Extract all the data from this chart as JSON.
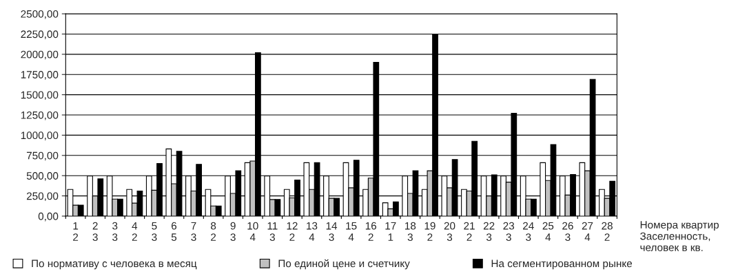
{
  "chart_data": {
    "type": "bar",
    "categories": [
      "1\n2",
      "2\n3",
      "3\n3",
      "4\n2",
      "5\n3",
      "6\n5",
      "7\n3",
      "8\n2",
      "9\n3",
      "10\n4",
      "11\n3",
      "12\n2",
      "13\n4",
      "14\n3",
      "15\n4",
      "16\n2",
      "17\n1",
      "18\n3",
      "19\n2",
      "20\n3",
      "21\n2",
      "22\n3",
      "23\n3",
      "24\n3",
      "25\n4",
      "26\n3",
      "27\n4",
      "28\n2"
    ],
    "series": [
      {
        "name": "По нормативу с человека в месяц",
        "color": "#ffffff",
        "values": [
          330,
          495,
          495,
          330,
          495,
          830,
          495,
          330,
          495,
          660,
          495,
          330,
          660,
          495,
          660,
          330,
          165,
          495,
          330,
          495,
          330,
          495,
          495,
          495,
          660,
          495,
          660,
          330
        ]
      },
      {
        "name": "По единой цене и счетчику",
        "color": "#c0c0c0",
        "values": [
          135,
          250,
          210,
          160,
          320,
          400,
          310,
          125,
          280,
          680,
          205,
          225,
          330,
          220,
          350,
          470,
          90,
          280,
          560,
          350,
          310,
          250,
          420,
          210,
          440,
          260,
          560,
          220
        ]
      },
      {
        "name": "На сегментированном рынке",
        "color": "#000000",
        "values": [
          135,
          460,
          210,
          310,
          650,
          800,
          640,
          125,
          560,
          2020,
          205,
          445,
          660,
          220,
          690,
          1900,
          175,
          560,
          2250,
          700,
          925,
          510,
          1270,
          210,
          885,
          515,
          1690,
          430
        ]
      }
    ],
    "ylim": [
      0,
      2500
    ],
    "yticks": [
      {
        "value": 0,
        "label": "0,00"
      },
      {
        "value": 250,
        "label": "250,00"
      },
      {
        "value": 500,
        "label": "500,00"
      },
      {
        "value": 750,
        "label": "750,00"
      },
      {
        "value": 1000,
        "label": "1000,00"
      },
      {
        "value": 1250,
        "label": "1250,00"
      },
      {
        "value": 1500,
        "label": "1500,00"
      },
      {
        "value": 1750,
        "label": "1750,00"
      },
      {
        "value": 2000,
        "label": "2000,00"
      },
      {
        "value": 2250,
        "label": "2250,00"
      },
      {
        "value": 2500,
        "label": "2500,00"
      }
    ],
    "grid": "y",
    "legend": "bottom",
    "annotations": [
      "Номера квартир\nЗаселенность,\nчеловек в кв."
    ]
  }
}
